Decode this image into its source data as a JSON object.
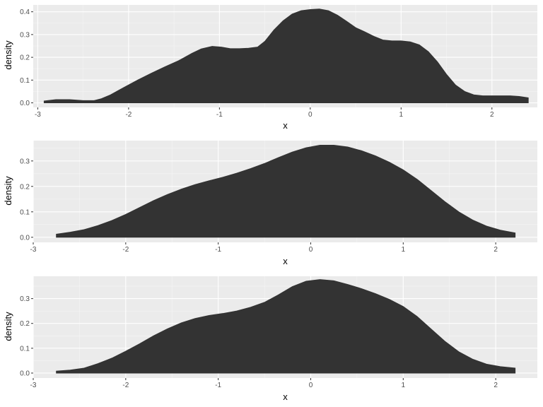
{
  "chart_data": [
    {
      "type": "area",
      "xlabel": "x",
      "ylabel": "density",
      "xlim": [
        -3.05,
        2.5
      ],
      "ylim": [
        -0.02,
        0.43
      ],
      "xticks": [
        -3,
        -2,
        -1,
        0,
        1,
        2
      ],
      "xtick_labels": [
        "-3",
        "-2",
        "-1",
        "0",
        "1",
        "2"
      ],
      "yticks": [
        0.0,
        0.1,
        0.2,
        0.3,
        0.4
      ],
      "ytick_labels": [
        "0.0",
        "0.1",
        "0.2",
        "0.3",
        "0.4"
      ],
      "grid": true,
      "series": [
        {
          "x": [
            -2.93,
            -2.8,
            -2.65,
            -2.5,
            -2.38,
            -2.3,
            -2.2,
            -2.05,
            -1.9,
            -1.75,
            -1.6,
            -1.45,
            -1.3,
            -1.2,
            -1.08,
            -0.98,
            -0.88,
            -0.78,
            -0.68,
            -0.58,
            -0.5,
            -0.4,
            -0.3,
            -0.2,
            -0.1,
            0.0,
            0.1,
            0.2,
            0.3,
            0.4,
            0.5,
            0.6,
            0.7,
            0.8,
            0.9,
            1.0,
            1.1,
            1.2,
            1.3,
            1.4,
            1.5,
            1.6,
            1.7,
            1.8,
            1.9,
            2.0,
            2.1,
            2.2,
            2.3,
            2.4
          ],
          "y": [
            0.008,
            0.014,
            0.014,
            0.01,
            0.01,
            0.018,
            0.035,
            0.068,
            0.1,
            0.13,
            0.158,
            0.185,
            0.218,
            0.237,
            0.248,
            0.245,
            0.238,
            0.238,
            0.24,
            0.245,
            0.27,
            0.32,
            0.36,
            0.39,
            0.405,
            0.41,
            0.412,
            0.405,
            0.385,
            0.358,
            0.33,
            0.312,
            0.292,
            0.276,
            0.272,
            0.272,
            0.268,
            0.255,
            0.225,
            0.18,
            0.125,
            0.078,
            0.05,
            0.035,
            0.031,
            0.031,
            0.031,
            0.031,
            0.028,
            0.022
          ]
        }
      ]
    },
    {
      "type": "area",
      "xlabel": "x",
      "ylabel": "density",
      "xlim": [
        -3.0,
        2.45
      ],
      "ylim": [
        -0.02,
        0.38
      ],
      "xticks": [
        -3,
        -2,
        -1,
        0,
        1,
        2
      ],
      "xtick_labels": [
        "-3",
        "-2",
        "-1",
        "0",
        "1",
        "2"
      ],
      "yticks": [
        0.0,
        0.1,
        0.2,
        0.3
      ],
      "ytick_labels": [
        "0.0",
        "0.1",
        "0.2",
        "0.3"
      ],
      "grid": true,
      "series": [
        {
          "x": [
            -2.75,
            -2.6,
            -2.45,
            -2.3,
            -2.15,
            -2.0,
            -1.85,
            -1.7,
            -1.55,
            -1.4,
            -1.25,
            -1.1,
            -0.95,
            -0.8,
            -0.65,
            -0.5,
            -0.35,
            -0.2,
            -0.05,
            0.1,
            0.25,
            0.4,
            0.55,
            0.7,
            0.85,
            1.0,
            1.15,
            1.3,
            1.45,
            1.6,
            1.75,
            1.9,
            2.05,
            2.21
          ],
          "y": [
            0.012,
            0.02,
            0.03,
            0.046,
            0.066,
            0.09,
            0.117,
            0.144,
            0.168,
            0.189,
            0.207,
            0.222,
            0.236,
            0.252,
            0.27,
            0.29,
            0.313,
            0.335,
            0.352,
            0.362,
            0.362,
            0.355,
            0.34,
            0.32,
            0.295,
            0.265,
            0.228,
            0.184,
            0.14,
            0.1,
            0.068,
            0.044,
            0.028,
            0.017
          ]
        }
      ]
    },
    {
      "type": "area",
      "xlabel": "x",
      "ylabel": "density",
      "xlim": [
        -3.0,
        2.45
      ],
      "ylim": [
        -0.02,
        0.39
      ],
      "xticks": [
        -3,
        -2,
        -1,
        0,
        1,
        2
      ],
      "xtick_labels": [
        "-3",
        "-2",
        "-1",
        "0",
        "1",
        "2"
      ],
      "yticks": [
        0.0,
        0.1,
        0.2,
        0.3
      ],
      "ytick_labels": [
        "0.0",
        "0.1",
        "0.2",
        "0.3"
      ],
      "grid": true,
      "series": [
        {
          "x": [
            -2.75,
            -2.6,
            -2.45,
            -2.3,
            -2.15,
            -2.0,
            -1.85,
            -1.7,
            -1.55,
            -1.4,
            -1.25,
            -1.1,
            -0.95,
            -0.8,
            -0.65,
            -0.5,
            -0.35,
            -0.2,
            -0.05,
            0.1,
            0.25,
            0.4,
            0.55,
            0.7,
            0.85,
            1.0,
            1.15,
            1.3,
            1.45,
            1.6,
            1.75,
            1.9,
            2.05,
            2.21
          ],
          "y": [
            0.008,
            0.012,
            0.02,
            0.038,
            0.06,
            0.088,
            0.118,
            0.15,
            0.178,
            0.202,
            0.22,
            0.232,
            0.24,
            0.25,
            0.265,
            0.285,
            0.315,
            0.348,
            0.37,
            0.377,
            0.372,
            0.357,
            0.34,
            0.32,
            0.297,
            0.268,
            0.228,
            0.178,
            0.128,
            0.086,
            0.056,
            0.036,
            0.026,
            0.02
          ]
        }
      ]
    }
  ]
}
